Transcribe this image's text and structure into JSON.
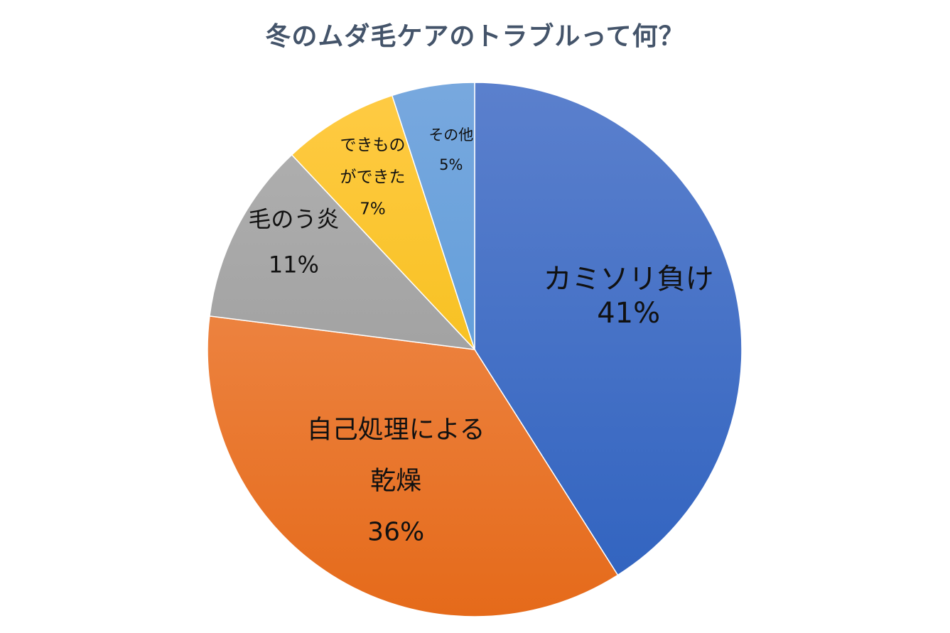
{
  "chart_data": {
    "type": "pie",
    "title": "冬のムダ毛ケアのトラブルって何？",
    "start_angle_deg": 0,
    "direction": "clockwise",
    "slices": [
      {
        "label_lines": [
          "カミソリ負け"
        ],
        "value": 41,
        "value_label": "41%",
        "color_top": "#5b80cd",
        "color_bottom": "#2f62bf"
      },
      {
        "label_lines": [
          "自己処理による",
          "乾燥"
        ],
        "value": 36,
        "value_label": "36%",
        "color_top": "#f2955c",
        "color_bottom": "#e56a1a"
      },
      {
        "label_lines": [
          "毛のう炎"
        ],
        "value": 11,
        "value_label": "11%",
        "color_top": "#b2b2b2",
        "color_bottom": "#939393"
      },
      {
        "label_lines": [
          "できもの",
          "ができた"
        ],
        "value": 7,
        "value_label": "7%",
        "color_top": "#ffcb45",
        "color_bottom": "#f0b800"
      },
      {
        "label_lines": [
          "その他"
        ],
        "value": 5,
        "value_label": "5%",
        "color_top": "#78a8de",
        "color_bottom": "#4f96d8"
      }
    ]
  }
}
